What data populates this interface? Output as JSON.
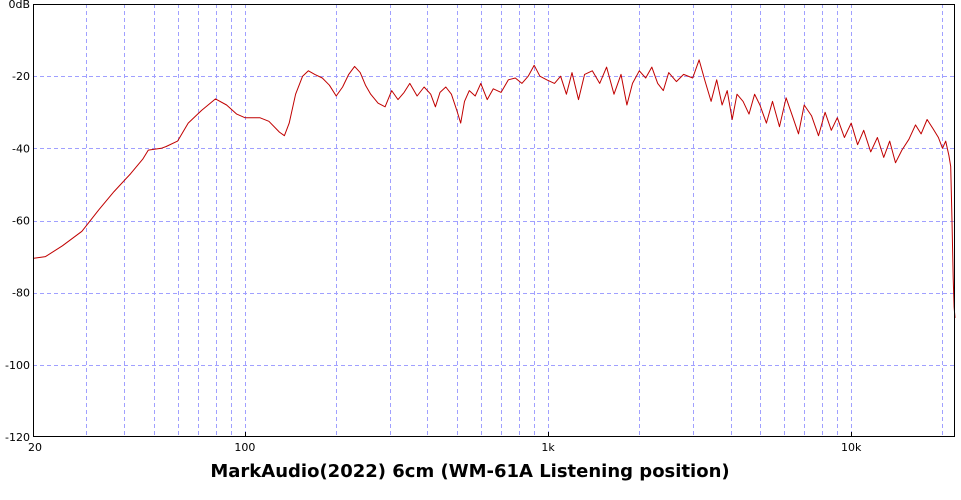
{
  "chart_data": {
    "type": "line",
    "title": "MarkAudio(2022) 6cm (WM-61A Listening position)",
    "xlabel": "",
    "ylabel": "",
    "x_scale": "log",
    "xlim": [
      20,
      22000
    ],
    "ylim": [
      -120,
      0
    ],
    "grid": true,
    "legend": "none",
    "x_tick_labels": [
      {
        "value": 20,
        "label": "20"
      },
      {
        "value": 100,
        "label": "100"
      },
      {
        "value": 1000,
        "label": "1k"
      },
      {
        "value": 10000,
        "label": "10k"
      }
    ],
    "y_tick_labels": [
      {
        "value": 0,
        "label": "0dB"
      },
      {
        "value": -20,
        "label": "-20"
      },
      {
        "value": -40,
        "label": "-40"
      },
      {
        "value": -60,
        "label": "-60"
      },
      {
        "value": -80,
        "label": "-80"
      },
      {
        "value": -100,
        "label": "-100"
      },
      {
        "value": -120,
        "label": "-120"
      }
    ],
    "colors": {
      "trace": "#c00000",
      "grid": "#a0a0ff",
      "axes": "#000000"
    },
    "series": [
      {
        "values": [
          [
            20,
            -70.5
          ],
          [
            22,
            -70
          ],
          [
            25,
            -67
          ],
          [
            29,
            -63
          ],
          [
            33,
            -57
          ],
          [
            37,
            -52
          ],
          [
            42,
            -47
          ],
          [
            46,
            -43
          ],
          [
            48,
            -40.5
          ],
          [
            53,
            -40
          ],
          [
            55,
            -39.5
          ],
          [
            60,
            -38
          ],
          [
            65,
            -33
          ],
          [
            72,
            -29.5
          ],
          [
            80,
            -26.3
          ],
          [
            87,
            -28
          ],
          [
            94,
            -30.5
          ],
          [
            100,
            -31.5
          ],
          [
            112,
            -31.5
          ],
          [
            120,
            -32.5
          ],
          [
            130,
            -35.5
          ],
          [
            135,
            -36.5
          ],
          [
            140,
            -33
          ],
          [
            147,
            -25
          ],
          [
            155,
            -20
          ],
          [
            162,
            -18.5
          ],
          [
            170,
            -19.5
          ],
          [
            180,
            -20.5
          ],
          [
            190,
            -22.5
          ],
          [
            200,
            -25.5
          ],
          [
            210,
            -23
          ],
          [
            220,
            -19.5
          ],
          [
            230,
            -17.3
          ],
          [
            240,
            -19
          ],
          [
            250,
            -22.5
          ],
          [
            260,
            -25
          ],
          [
            275,
            -27.5
          ],
          [
            290,
            -28.5
          ],
          [
            305,
            -24
          ],
          [
            320,
            -26.5
          ],
          [
            335,
            -24.5
          ],
          [
            350,
            -22
          ],
          [
            370,
            -25.5
          ],
          [
            390,
            -23
          ],
          [
            410,
            -25
          ],
          [
            425,
            -28.5
          ],
          [
            440,
            -24.5
          ],
          [
            460,
            -23
          ],
          [
            480,
            -25
          ],
          [
            500,
            -29.5
          ],
          [
            515,
            -33
          ],
          [
            530,
            -27
          ],
          [
            550,
            -24
          ],
          [
            575,
            -25.5
          ],
          [
            600,
            -22
          ],
          [
            630,
            -26.5
          ],
          [
            660,
            -23.5
          ],
          [
            700,
            -24.5
          ],
          [
            740,
            -21
          ],
          [
            780,
            -20.5
          ],
          [
            820,
            -22
          ],
          [
            860,
            -20
          ],
          [
            900,
            -17
          ],
          [
            940,
            -20
          ],
          [
            990,
            -21
          ],
          [
            1050,
            -22
          ],
          [
            1100,
            -20
          ],
          [
            1150,
            -25
          ],
          [
            1200,
            -19
          ],
          [
            1260,
            -26.5
          ],
          [
            1320,
            -19.5
          ],
          [
            1400,
            -18.5
          ],
          [
            1480,
            -22
          ],
          [
            1560,
            -17.5
          ],
          [
            1650,
            -25
          ],
          [
            1740,
            -19.5
          ],
          [
            1820,
            -28
          ],
          [
            1900,
            -22
          ],
          [
            2000,
            -18.5
          ],
          [
            2100,
            -20.5
          ],
          [
            2200,
            -17.5
          ],
          [
            2300,
            -22
          ],
          [
            2400,
            -24
          ],
          [
            2500,
            -19
          ],
          [
            2650,
            -21.5
          ],
          [
            2800,
            -19.5
          ],
          [
            3000,
            -20.5
          ],
          [
            3150,
            -15.5
          ],
          [
            3300,
            -21.5
          ],
          [
            3450,
            -27
          ],
          [
            3600,
            -21
          ],
          [
            3750,
            -28
          ],
          [
            3900,
            -24
          ],
          [
            4050,
            -32
          ],
          [
            4200,
            -25
          ],
          [
            4400,
            -27
          ],
          [
            4600,
            -30.5
          ],
          [
            4800,
            -25
          ],
          [
            5000,
            -28
          ],
          [
            5250,
            -33
          ],
          [
            5500,
            -27
          ],
          [
            5800,
            -34
          ],
          [
            6100,
            -26
          ],
          [
            6400,
            -31
          ],
          [
            6700,
            -36
          ],
          [
            7000,
            -28
          ],
          [
            7400,
            -31
          ],
          [
            7800,
            -36.5
          ],
          [
            8200,
            -30
          ],
          [
            8600,
            -35
          ],
          [
            9000,
            -31.5
          ],
          [
            9500,
            -37
          ],
          [
            10000,
            -33
          ],
          [
            10500,
            -39
          ],
          [
            11000,
            -35
          ],
          [
            11600,
            -41
          ],
          [
            12200,
            -37
          ],
          [
            12800,
            -42.5
          ],
          [
            13400,
            -38
          ],
          [
            14000,
            -44
          ],
          [
            14700,
            -40.5
          ],
          [
            15500,
            -37.5
          ],
          [
            16300,
            -33.5
          ],
          [
            17000,
            -36
          ],
          [
            17800,
            -32
          ],
          [
            18600,
            -34.5
          ],
          [
            19400,
            -37
          ],
          [
            20000,
            -40
          ],
          [
            20500,
            -38
          ],
          [
            21000,
            -42
          ],
          [
            21300,
            -45
          ],
          [
            21500,
            -60
          ],
          [
            21700,
            -76
          ],
          [
            21850,
            -84
          ],
          [
            22000,
            -87
          ]
        ]
      }
    ]
  }
}
